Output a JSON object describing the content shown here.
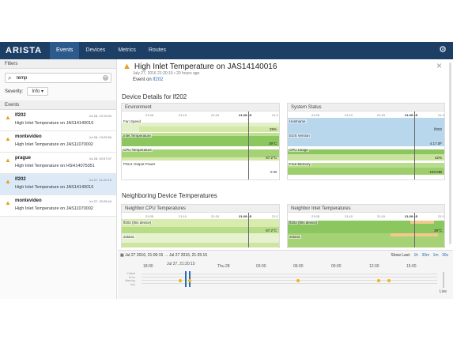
{
  "app": {
    "logo": "ARISTA"
  },
  "nav": {
    "tabs": [
      "Events",
      "Devices",
      "Metrics",
      "Routes"
    ]
  },
  "sidebar": {
    "filters_label": "Filters",
    "search_value": "temp",
    "severity_label": "Severity:",
    "severity_value": "Info",
    "events_label": "Events",
    "events": [
      {
        "device": "lf202",
        "time": "Jul 28, 15:10:00",
        "message": "High Inlet Temperature on JAS14140016"
      },
      {
        "device": "montevideo",
        "time": "Jul 28, 13:20:56",
        "message": "High Inlet Temperature on JAS11070002"
      },
      {
        "device": "prague",
        "time": "Jul 28, 00:57:07",
        "message": "High Inlet Temperature on HSH14075051"
      },
      {
        "device": "lf202",
        "time": "Jul 27, 21:20:15",
        "message": "High Inlet Temperature on JAS14140016"
      },
      {
        "device": "montevideo",
        "time": "Jul 27, 20:28:44",
        "message": "High Inlet Temperature on JAS11070002"
      }
    ]
  },
  "detail": {
    "title": "High Inlet Temperature on JAS14140016",
    "subtitle": "July 27, 2016 21:20:15 • 20 hours ago",
    "event_on_label": "Event on",
    "event_on_link": "lf202",
    "device_details_heading": "Device Details for lf202",
    "neighbor_heading": "Neighboring Device Temperatures",
    "environment": {
      "title": "Environment",
      "ticks": [
        "21:05",
        "21:10",
        "21:15",
        "21:20:15",
        "21:2"
      ],
      "rows": [
        {
          "label": "Fan Speed",
          "value": "29%"
        },
        {
          "label": "Inlet Temperature",
          "value": "39°C"
        },
        {
          "label": "CPU Temperature",
          "value": "67.2°C"
        },
        {
          "label": "PSU1 Output Power",
          "value": "0 W"
        }
      ]
    },
    "system_status": {
      "title": "System Status",
      "ticks": [
        "21:05",
        "21:10",
        "21:15",
        "21:20:15",
        "21:2"
      ],
      "rows": [
        {
          "label": "Hostname",
          "value": "lf202"
        },
        {
          "label": "EOS Version",
          "value": "4.17.0F"
        },
        {
          "label": "CPU Usage",
          "value": "42%"
        },
        {
          "label": "Free Memory",
          "value": "193 MB"
        }
      ]
    },
    "neighbor_cpu": {
      "title": "Neighbor CPU Temperatures",
      "ticks": [
        "21:05",
        "21:10",
        "21:15",
        "21:20:15",
        "21:2"
      ],
      "rows": [
        {
          "label": "lf202 (this device)",
          "value": "67.2°C"
        },
        {
          "label": "astana",
          "value": ""
        }
      ]
    },
    "neighbor_inlet": {
      "title": "Neighbor Inlet Temperatures",
      "ticks": [
        "21:05",
        "21:10",
        "21:15",
        "21:20:15",
        "21:2"
      ],
      "rows": [
        {
          "label": "lf202 (this device)",
          "value": "39°C"
        },
        {
          "label": "astana",
          "value": ""
        }
      ]
    }
  },
  "timeline": {
    "range_from": "Jul 27 2016, 21:00:15",
    "range_arrow": "→",
    "range_to": "Jul 27 2016, 21:25:15",
    "show_last_label": "Show Last:",
    "show_last_options": [
      "1h",
      "30m",
      "1m",
      "30s"
    ],
    "ticks": [
      "18:00",
      "Jul 27, 21:20:15",
      "Thu 28",
      "03:00",
      "06:00",
      "09:00",
      "12:00",
      "15:00"
    ],
    "severity_levels": [
      "Critical",
      "Error",
      "Warning",
      "Info"
    ],
    "live_label": "Live"
  },
  "colors": {
    "navbar": "#1d3f66",
    "active_tab": "#2c5a8c",
    "warning": "#e5a11c",
    "link": "#2a6cb8",
    "chart_green_light": "#d3e8a6",
    "chart_green": "#8cc65e",
    "chart_blue": "#b8d7ec",
    "chart_orange": "#f2c98a"
  }
}
